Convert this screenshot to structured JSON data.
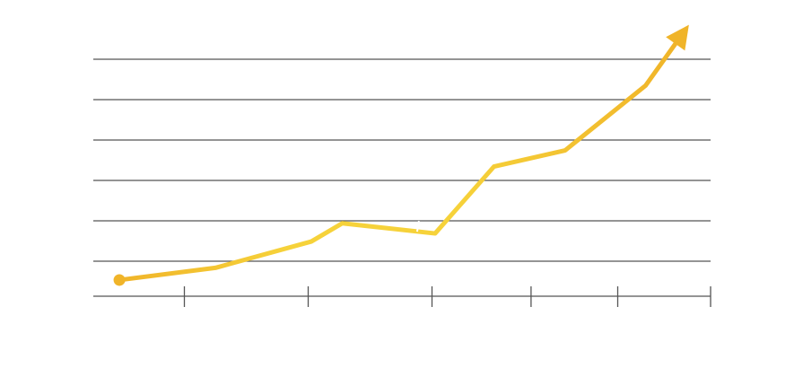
{
  "chart_data": {
    "type": "line",
    "title": "",
    "xlabel": "",
    "ylabel": "",
    "grid": true,
    "legend": "none",
    "xlim": [
      0,
      100
    ],
    "ylim": [
      0,
      6
    ],
    "x_ticks": [
      15,
      35,
      55,
      71,
      85,
      100
    ],
    "y_gridlines": [
      1,
      2,
      3,
      4,
      5,
      6
    ],
    "series": [
      {
        "x": [
          4.5,
          20,
          35.5,
          40.5,
          55.5,
          65,
          76.5,
          89.5,
          96.5
        ],
        "y": [
          0.4,
          0.7,
          1.35,
          1.8,
          1.55,
          3.2,
          3.6,
          5.2,
          6.7
        ],
        "start_marker": "circle",
        "end_marker": "arrow"
      }
    ],
    "colors": {
      "line_start": "#f0b429",
      "line_mid": "#f6d23a",
      "line_end": "#f0b429",
      "grid": "#555555",
      "axis": "#555555"
    }
  }
}
